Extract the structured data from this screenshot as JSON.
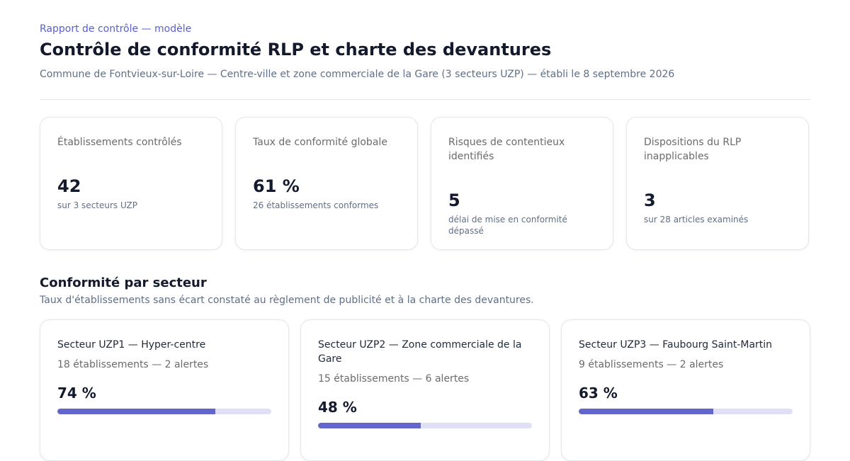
{
  "header": {
    "eyebrow": "Rapport de contrôle — modèle",
    "title": "Contrôle de conformité RLP et charte des devantures",
    "subtitle": "Commune de Fontvieux-sur-Loire — Centre-ville et zone commerciale de la Gare (3 secteurs UZP) — établi le 8 septembre 2026"
  },
  "kpis": [
    {
      "label": "Établissements contrôlés",
      "value": "42",
      "note": "sur 3 secteurs UZP"
    },
    {
      "label": "Taux de conformité globale",
      "value": "61 %",
      "note": "26 établissements conformes"
    },
    {
      "label": "Risques de contentieux identifiés",
      "value": "5",
      "note": "délai de mise en conformité dépassé"
    },
    {
      "label": "Dispositions du RLP inapplicables",
      "value": "3",
      "note": "sur 28 articles examinés"
    }
  ],
  "sectors_section": {
    "title": "Conformité par secteur",
    "subtitle": "Taux d'établissements sans écart constaté au règlement de publicité et à la charte des devantures."
  },
  "sectors": [
    {
      "name": "Secteur UZP1 — Hyper-centre",
      "meta": "18 établissements — 2 alertes",
      "value": "74 %",
      "percent": 74
    },
    {
      "name": "Secteur UZP2 — Zone commerciale de la Gare",
      "meta": "15 établissements — 6 alertes",
      "value": "48 %",
      "percent": 48
    },
    {
      "name": "Secteur UZP3 — Faubourg Saint-Martin",
      "meta": "9 établissements — 2 alertes",
      "value": "63 %",
      "percent": 63
    }
  ],
  "colors": {
    "accent": "#6366cc",
    "accent_track": "#dfe0f5",
    "eyebrow": "#5a5fc8"
  }
}
